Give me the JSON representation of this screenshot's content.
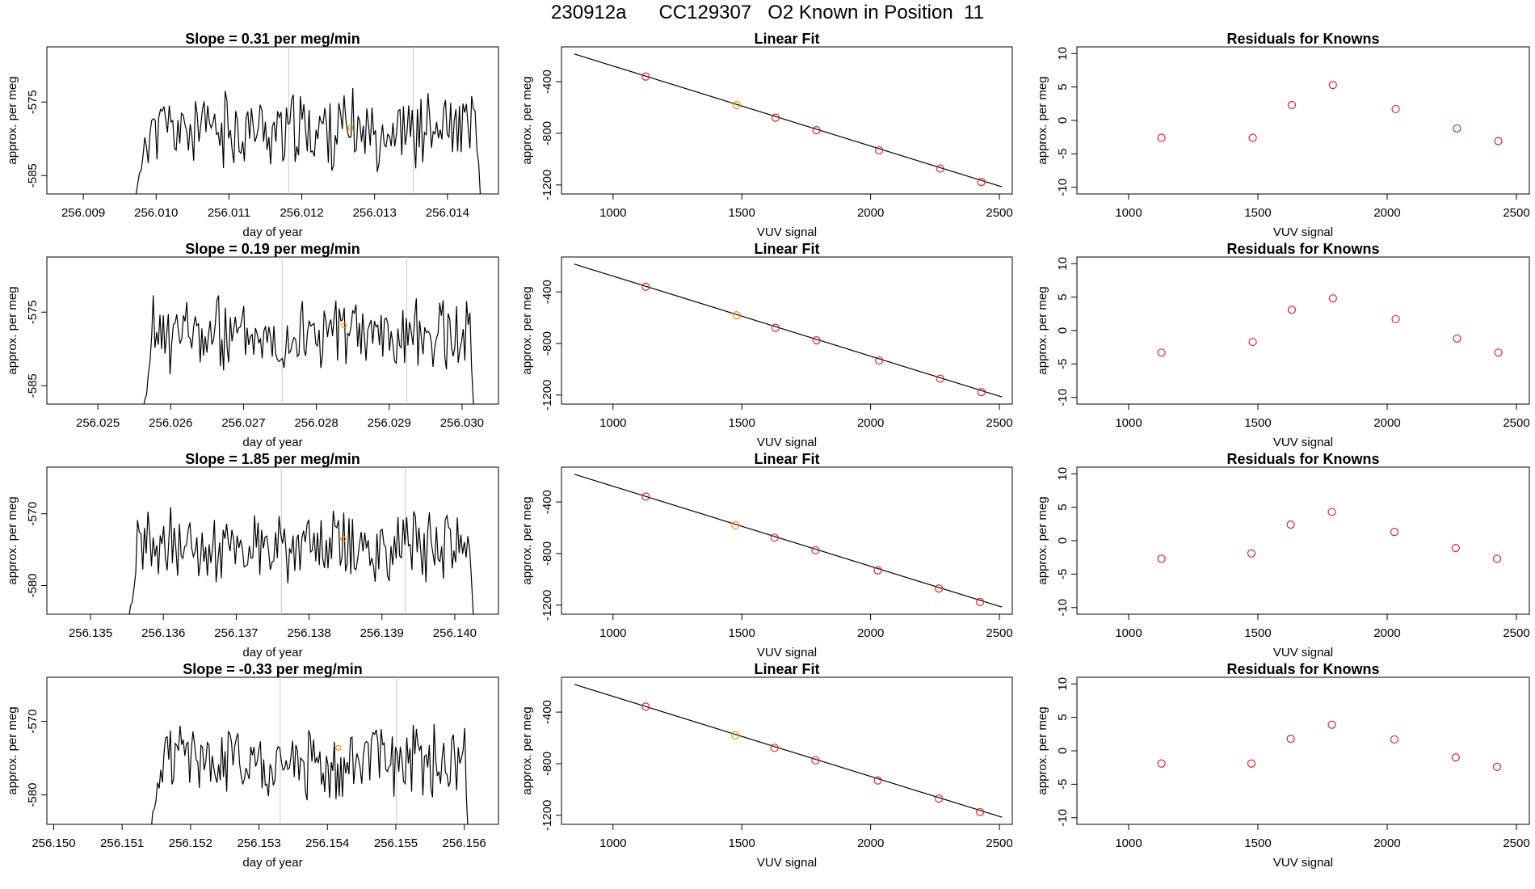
{
  "title": "230912a      CC129307   O2 Known in Position  11",
  "colors": {
    "line": "#000000",
    "points_red": "#d62728",
    "points_orange": "#ff8c00",
    "vline": "#c8c8c8"
  },
  "chart_data": [
    {
      "type": "line",
      "row": 0,
      "panel": "time",
      "title": "Slope =  0.31  per meg/min",
      "xlabel": "day of year",
      "ylabel": "approx. per meg",
      "xlim": [
        256.0085,
        256.0147
      ],
      "ylim": [
        -587.5,
        -567.5
      ],
      "xticks": [
        256.009,
        256.01,
        256.011,
        256.012,
        256.013,
        256.014
      ],
      "xtick_labels": [
        "256.009",
        "256.010",
        "256.011",
        "256.012",
        "256.013",
        "256.014"
      ],
      "yticks": [
        -585,
        -575
      ],
      "ytick_labels": [
        "-585",
        "-575"
      ],
      "x_start": 256.0097,
      "x_end": 256.0145,
      "seed": 11,
      "mean": -578.8,
      "amp": 4.2,
      "vlines": [
        256.01182,
        256.01353
      ],
      "marker": {
        "x": 256.01267,
        "y": -578.5
      }
    },
    {
      "type": "line",
      "row": 0,
      "panel": "fit",
      "title": "Linear Fit",
      "xlabel": "VUV signal",
      "ylabel": "approx. per meg",
      "xlim": [
        800,
        2550
      ],
      "ylim": [
        -1270,
        -130
      ],
      "xticks": [
        1000,
        1500,
        2000,
        2500
      ],
      "xtick_labels": [
        "1000",
        "1500",
        "2000",
        "2500"
      ],
      "yticks": [
        -1200,
        -800,
        -400
      ],
      "ytick_labels": [
        "-1200",
        "-800",
        "-400"
      ],
      "line": {
        "x": [
          850,
          2510
        ],
        "y": [
          -185,
          -1215
        ]
      },
      "points": {
        "x": [
          1127,
          1480,
          1631,
          1790,
          2033,
          2270,
          2430
        ],
        "y": [
          -360,
          -582,
          -679,
          -776,
          -932,
          -1073,
          -1177
        ]
      },
      "highlight_index": 1
    },
    {
      "type": "scatter",
      "row": 0,
      "panel": "resid",
      "title": "Residuals for Knowns",
      "xlabel": "VUV signal",
      "ylabel": "approx. per meg",
      "xlim": [
        800,
        2550
      ],
      "ylim": [
        -11,
        11
      ],
      "xticks": [
        1000,
        1500,
        2000,
        2500
      ],
      "xtick_labels": [
        "1000",
        "1500",
        "2000",
        "2500"
      ],
      "yticks": [
        -10,
        -5,
        0,
        5,
        10
      ],
      "ytick_labels": [
        "-10",
        "-5",
        "0",
        "5",
        "10"
      ],
      "points": {
        "x": [
          1127,
          1480,
          1631,
          1790,
          2033,
          2270,
          2430
        ],
        "y": [
          -2.6,
          -2.6,
          2.3,
          5.3,
          1.7,
          -1.2,
          -3.1
        ]
      }
    },
    {
      "type": "line",
      "row": 1,
      "panel": "time",
      "title": "Slope =  0.19  per meg/min",
      "xlabel": "day of year",
      "ylabel": "approx. per meg",
      "xlim": [
        256.0243,
        256.0305
      ],
      "ylim": [
        -587.5,
        -567.5
      ],
      "xticks": [
        256.025,
        256.026,
        256.027,
        256.028,
        256.029,
        256.03
      ],
      "xtick_labels": [
        "256.025",
        "256.026",
        "256.027",
        "256.028",
        "256.029",
        "256.030"
      ],
      "yticks": [
        -585,
        -575
      ],
      "ytick_labels": [
        "-585",
        "-575"
      ],
      "x_start": 256.0256,
      "x_end": 256.0302,
      "seed": 23,
      "mean": -578.0,
      "amp": 4.2,
      "vlines": [
        256.02753,
        256.02924
      ],
      "marker": {
        "x": 256.02838,
        "y": -576.8
      }
    },
    {
      "type": "line",
      "row": 1,
      "panel": "fit",
      "title": "Linear Fit",
      "xlabel": "VUV signal",
      "ylabel": "approx. per meg",
      "xlim": [
        800,
        2550
      ],
      "ylim": [
        -1270,
        -130
      ],
      "xticks": [
        1000,
        1500,
        2000,
        2500
      ],
      "xtick_labels": [
        "1000",
        "1500",
        "2000",
        "2500"
      ],
      "yticks": [
        -1200,
        -800,
        -400
      ],
      "ytick_labels": [
        "-1200",
        "-800",
        "-400"
      ],
      "line": {
        "x": [
          850,
          2510
        ],
        "y": [
          -185,
          -1215
        ]
      },
      "points": {
        "x": [
          1127,
          1480,
          1631,
          1790,
          2033,
          2270,
          2430
        ],
        "y": [
          -360,
          -582,
          -679,
          -776,
          -932,
          -1073,
          -1177
        ]
      },
      "highlight_index": 1
    },
    {
      "type": "scatter",
      "row": 1,
      "panel": "resid",
      "title": "Residuals for Knowns",
      "xlabel": "VUV signal",
      "ylabel": "approx. per meg",
      "xlim": [
        800,
        2550
      ],
      "ylim": [
        -11,
        11
      ],
      "xticks": [
        1000,
        1500,
        2000,
        2500
      ],
      "xtick_labels": [
        "1000",
        "1500",
        "2000",
        "2500"
      ],
      "yticks": [
        -10,
        -5,
        0,
        5,
        10
      ],
      "ytick_labels": [
        "-10",
        "-5",
        "0",
        "5",
        "10"
      ],
      "points": {
        "x": [
          1127,
          1480,
          1631,
          1790,
          2033,
          2270,
          2430
        ],
        "y": [
          -3.3,
          -1.7,
          3.1,
          4.8,
          1.7,
          -1.2,
          -3.3
        ]
      }
    },
    {
      "type": "line",
      "row": 2,
      "panel": "time",
      "title": "Slope =  1.85  per meg/min",
      "xlabel": "day of year",
      "ylabel": "approx. per meg",
      "xlim": [
        256.1344,
        256.1406
      ],
      "ylim": [
        -584,
        -563.5
      ],
      "xticks": [
        256.135,
        256.136,
        256.137,
        256.138,
        256.139,
        256.14
      ],
      "xtick_labels": [
        "256.135",
        "256.136",
        "256.137",
        "256.138",
        "256.139",
        "256.140"
      ],
      "yticks": [
        -580,
        -570
      ],
      "ytick_labels": [
        "-580",
        "-570"
      ],
      "x_start": 256.1355,
      "x_end": 256.1403,
      "seed": 37,
      "mean": -574.5,
      "amp": 4.0,
      "vlines": [
        256.13762,
        256.13932
      ],
      "marker": {
        "x": 256.13847,
        "y": -573.5
      }
    },
    {
      "type": "line",
      "row": 2,
      "panel": "fit",
      "title": "Linear Fit",
      "xlabel": "VUV signal",
      "ylabel": "approx. per meg",
      "xlim": [
        800,
        2550
      ],
      "ylim": [
        -1270,
        -130
      ],
      "xticks": [
        1000,
        1500,
        2000,
        2500
      ],
      "xtick_labels": [
        "1000",
        "1500",
        "2000",
        "2500"
      ],
      "yticks": [
        -1200,
        -800,
        -400
      ],
      "ytick_labels": [
        "-1200",
        "-800",
        "-400"
      ],
      "line": {
        "x": [
          850,
          2510
        ],
        "y": [
          -185,
          -1215
        ]
      },
      "points": {
        "x": [
          1127,
          1475,
          1627,
          1786,
          2028,
          2265,
          2425
        ],
        "y": [
          -358,
          -580,
          -677,
          -774,
          -930,
          -1071,
          -1175
        ]
      },
      "highlight_index": 1
    },
    {
      "type": "scatter",
      "row": 2,
      "panel": "resid",
      "title": "Residuals for Knowns",
      "xlabel": "VUV signal",
      "ylabel": "approx. per meg",
      "xlim": [
        800,
        2550
      ],
      "ylim": [
        -11,
        11
      ],
      "xticks": [
        1000,
        1500,
        2000,
        2500
      ],
      "xtick_labels": [
        "1000",
        "1500",
        "2000",
        "2500"
      ],
      "yticks": [
        -10,
        -5,
        0,
        5,
        10
      ],
      "ytick_labels": [
        "-10",
        "-5",
        "0",
        "5",
        "10"
      ],
      "points": {
        "x": [
          1127,
          1475,
          1627,
          1786,
          2028,
          2265,
          2425
        ],
        "y": [
          -2.7,
          -1.9,
          2.4,
          4.3,
          1.3,
          -1.1,
          -2.7
        ]
      }
    },
    {
      "type": "line",
      "row": 3,
      "panel": "time",
      "title": "Slope =  -0.33  per meg/min",
      "xlabel": "day of year",
      "ylabel": "approx. per meg",
      "xlim": [
        256.1499,
        256.1565
      ],
      "ylim": [
        -584,
        -564
      ],
      "xticks": [
        256.15,
        256.151,
        256.152,
        256.153,
        256.154,
        256.155,
        256.156
      ],
      "xtick_labels": [
        "256.150",
        "256.151",
        "256.152",
        "256.153",
        "256.154",
        "256.155",
        "256.156"
      ],
      "yticks": [
        -580,
        -570
      ],
      "ytick_labels": [
        "-580",
        "-570"
      ],
      "x_start": 256.1514,
      "x_end": 256.1561,
      "seed": 51,
      "mean": -575.5,
      "amp": 4.0,
      "vlines": [
        256.15331,
        256.15501
      ],
      "marker": {
        "x": 256.15416,
        "y": -573.6
      }
    },
    {
      "type": "line",
      "row": 3,
      "panel": "fit",
      "title": "Linear Fit",
      "xlabel": "VUV signal",
      "ylabel": "approx. per meg",
      "xlim": [
        800,
        2550
      ],
      "ylim": [
        -1270,
        -130
      ],
      "xticks": [
        1000,
        1500,
        2000,
        2500
      ],
      "xtick_labels": [
        "1000",
        "1500",
        "2000",
        "2500"
      ],
      "yticks": [
        -1200,
        -800,
        -400
      ],
      "ytick_labels": [
        "-1200",
        "-800",
        "-400"
      ],
      "line": {
        "x": [
          850,
          2510
        ],
        "y": [
          -185,
          -1215
        ]
      },
      "points": {
        "x": [
          1127,
          1475,
          1627,
          1786,
          2028,
          2265,
          2425
        ],
        "y": [
          -358,
          -580,
          -677,
          -774,
          -930,
          -1071,
          -1175
        ]
      },
      "highlight_index": 1
    },
    {
      "type": "scatter",
      "row": 3,
      "panel": "resid",
      "title": "Residuals for Knowns",
      "xlabel": "VUV signal",
      "ylabel": "approx. per meg",
      "xlim": [
        800,
        2550
      ],
      "ylim": [
        -11,
        11
      ],
      "xticks": [
        1000,
        1500,
        2000,
        2500
      ],
      "xtick_labels": [
        "1000",
        "1500",
        "2000",
        "2500"
      ],
      "yticks": [
        -10,
        -5,
        0,
        5,
        10
      ],
      "ytick_labels": [
        "-10",
        "-5",
        "0",
        "5",
        "10"
      ],
      "points": {
        "x": [
          1127,
          1475,
          1627,
          1786,
          2028,
          2265,
          2425
        ],
        "y": [
          -1.9,
          -1.9,
          1.8,
          3.9,
          1.7,
          -1.0,
          -2.4
        ]
      }
    }
  ]
}
